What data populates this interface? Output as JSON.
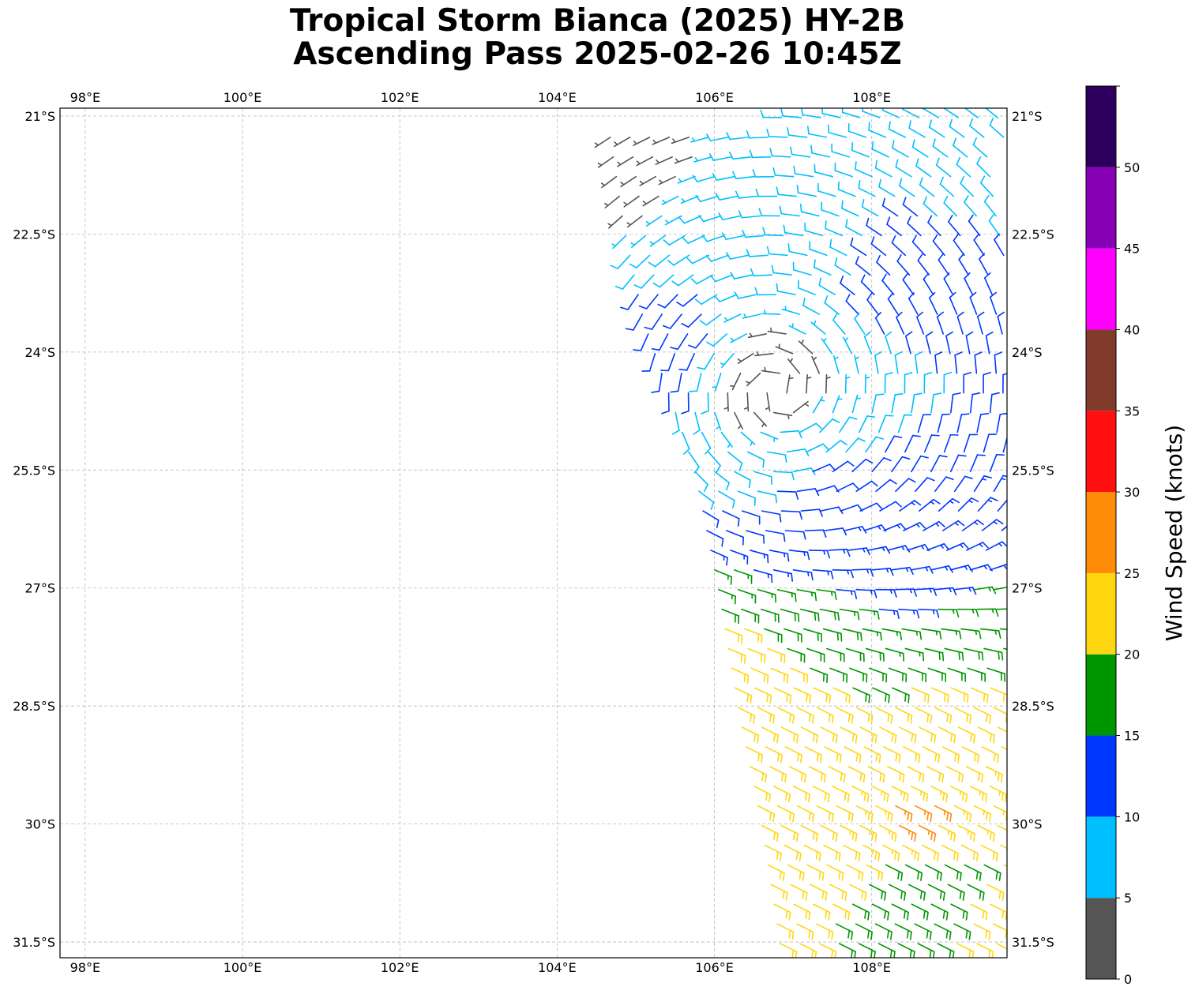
{
  "title": {
    "line1": "Tropical Storm Bianca (2025) HY-2B",
    "line2": "Ascending Pass 2025-02-26 10:45Z"
  },
  "map": {
    "lon_range": [
      97.68,
      109.72
    ],
    "lat_range": [
      -31.7,
      -20.9
    ],
    "gridlines": true,
    "lon_ticks": [
      {
        "value": 98,
        "label": "98°E"
      },
      {
        "value": 100,
        "label": "100°E"
      },
      {
        "value": 102,
        "label": "102°E"
      },
      {
        "value": 104,
        "label": "104°E"
      },
      {
        "value": 106,
        "label": "106°E"
      },
      {
        "value": 108,
        "label": "108°E"
      }
    ],
    "lat_ticks": [
      {
        "value": -21,
        "label": "21°S"
      },
      {
        "value": -22.5,
        "label": "22.5°S"
      },
      {
        "value": -24,
        "label": "24°S"
      },
      {
        "value": -25.5,
        "label": "25.5°S"
      },
      {
        "value": -27,
        "label": "27°S"
      },
      {
        "value": -28.5,
        "label": "28.5°S"
      },
      {
        "value": -30,
        "label": "30°S"
      },
      {
        "value": -31.5,
        "label": "31.5°S"
      }
    ],
    "wind_barbs": {
      "units": "knots",
      "swath_west_edge": [
        [
          -21.1,
          104.65
        ],
        [
          -22.4,
          104.85
        ],
        [
          -23.6,
          105.1
        ],
        [
          -24.9,
          105.55
        ],
        [
          -25.5,
          105.75
        ],
        [
          -27.0,
          106.05
        ],
        [
          -28.5,
          106.3
        ],
        [
          -30.0,
          106.6
        ],
        [
          -31.6,
          106.85
        ]
      ],
      "swath_east_edge_lon": 109.7,
      "storm_center": {
        "lat": -24.5,
        "lon": 106.8
      },
      "wind_fields": [
        {
          "lat": -21.3,
          "lon": 104.9,
          "speed": 3
        },
        {
          "lat": -21.8,
          "lon": 106.8,
          "speed": 9
        },
        {
          "lat": -21.5,
          "lon": 108.8,
          "speed": 9
        },
        {
          "lat": -22.5,
          "lon": 107.3,
          "speed": 9
        },
        {
          "lat": -23.0,
          "lon": 108.4,
          "speed": 11
        },
        {
          "lat": -24.0,
          "lon": 105.3,
          "speed": 11
        },
        {
          "lat": -24.5,
          "lon": 106.8,
          "speed": 3
        },
        {
          "lat": -25.2,
          "lon": 106.9,
          "speed": 8
        },
        {
          "lat": -25.9,
          "lon": 107.2,
          "speed": 12
        },
        {
          "lat": -26.8,
          "lon": 107.8,
          "speed": 13
        },
        {
          "lat": -27.5,
          "lon": 107.4,
          "speed": 18
        },
        {
          "lat": -28.2,
          "lon": 106.5,
          "speed": 22
        },
        {
          "lat": -28.8,
          "lon": 107.2,
          "speed": 21
        },
        {
          "lat": -29.3,
          "lon": 108.6,
          "speed": 21
        },
        {
          "lat": -29.7,
          "lon": 108.6,
          "speed": 26
        },
        {
          "lat": -30.8,
          "lon": 108.8,
          "speed": 18
        },
        {
          "lat": -31.2,
          "lon": 109.5,
          "speed": 21
        }
      ]
    }
  },
  "colorbar": {
    "title": "Wind Speed (knots)",
    "range": [
      0,
      55
    ],
    "bins": [
      {
        "from": 0,
        "to": 5,
        "color": "#555555"
      },
      {
        "from": 5,
        "to": 10,
        "color": "#00bfff"
      },
      {
        "from": 10,
        "to": 15,
        "color": "#0037ff"
      },
      {
        "from": 15,
        "to": 20,
        "color": "#009600"
      },
      {
        "from": 20,
        "to": 25,
        "color": "#ffd710"
      },
      {
        "from": 25,
        "to": 30,
        "color": "#ff8c08"
      },
      {
        "from": 30,
        "to": 35,
        "color": "#ff0f0f"
      },
      {
        "from": 35,
        "to": 40,
        "color": "#803b2a"
      },
      {
        "from": 40,
        "to": 45,
        "color": "#ff00ff"
      },
      {
        "from": 45,
        "to": 50,
        "color": "#8600b4"
      },
      {
        "from": 50,
        "to": 55,
        "color": "#2c005c"
      }
    ],
    "ticks": [
      "0",
      "5",
      "10",
      "15",
      "20",
      "25",
      "30",
      "35",
      "40",
      "45",
      "50"
    ]
  }
}
